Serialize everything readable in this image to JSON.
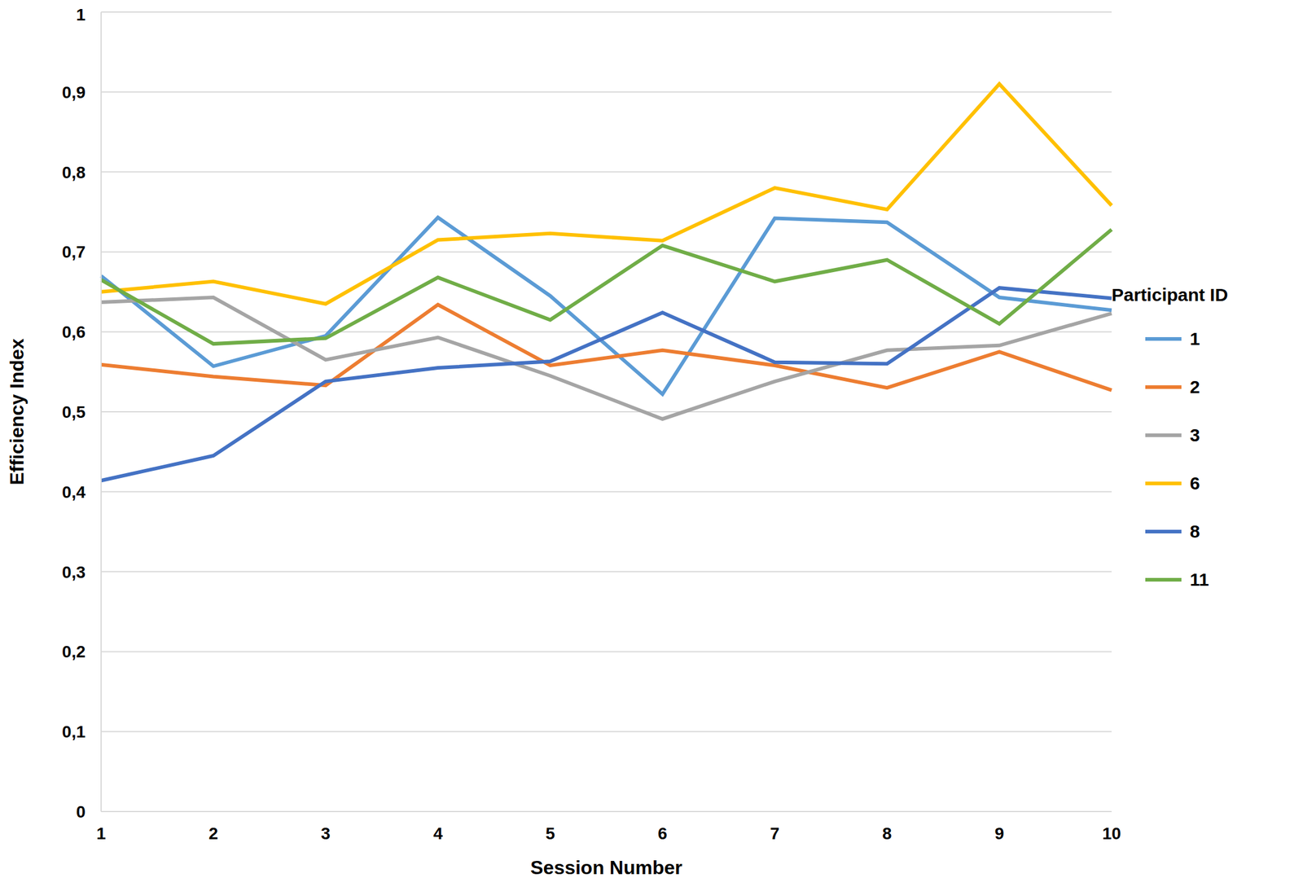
{
  "chart_data": {
    "type": "line",
    "x_label": "Session Number",
    "y_label": "Efficiency Index",
    "legend_title": "Participant ID",
    "legend": "right",
    "grid": true,
    "categories": [
      "1",
      "2",
      "3",
      "4",
      "5",
      "6",
      "7",
      "8",
      "9",
      "10"
    ],
    "ylim": [
      0,
      1
    ],
    "yticks": [
      0,
      {
        "value": 0.1,
        "label": "0,1"
      },
      {
        "value": 0.2,
        "label": "0,2"
      },
      {
        "value": 0.3,
        "label": "0,3"
      },
      {
        "value": 0.4,
        "label": "0,4"
      },
      {
        "value": 0.5,
        "label": "0,5"
      },
      {
        "value": 0.6,
        "label": "0,6"
      },
      {
        "value": 0.7,
        "label": "0,7"
      },
      {
        "value": 0.8,
        "label": "0,8"
      },
      {
        "value": 0.9,
        "label": "0,9"
      },
      1
    ],
    "series": [
      {
        "name": "1",
        "color": "#5b9bd5",
        "values": [
          0.67,
          0.557,
          0.595,
          0.743,
          0.645,
          0.522,
          0.742,
          0.737,
          0.643,
          0.627
        ]
      },
      {
        "name": "2",
        "color": "#ed7d31",
        "values": [
          0.559,
          0.544,
          0.533,
          0.634,
          0.558,
          0.577,
          0.558,
          0.53,
          0.575,
          0.527
        ]
      },
      {
        "name": "3",
        "color": "#a5a5a5",
        "values": [
          0.637,
          0.643,
          0.565,
          0.593,
          0.545,
          0.491,
          0.538,
          0.577,
          0.583,
          0.623
        ]
      },
      {
        "name": "6",
        "color": "#ffc000",
        "values": [
          0.65,
          0.663,
          0.635,
          0.715,
          0.723,
          0.714,
          0.78,
          0.753,
          0.91,
          0.758
        ]
      },
      {
        "name": "8",
        "color": "#4472c4",
        "values": [
          0.414,
          0.445,
          0.538,
          0.555,
          0.563,
          0.624,
          0.562,
          0.56,
          0.655,
          0.642
        ]
      },
      {
        "name": "11",
        "color": "#70ad47",
        "values": [
          0.665,
          0.585,
          0.592,
          0.668,
          0.615,
          0.708,
          0.663,
          0.69,
          0.61,
          0.728
        ]
      }
    ]
  }
}
